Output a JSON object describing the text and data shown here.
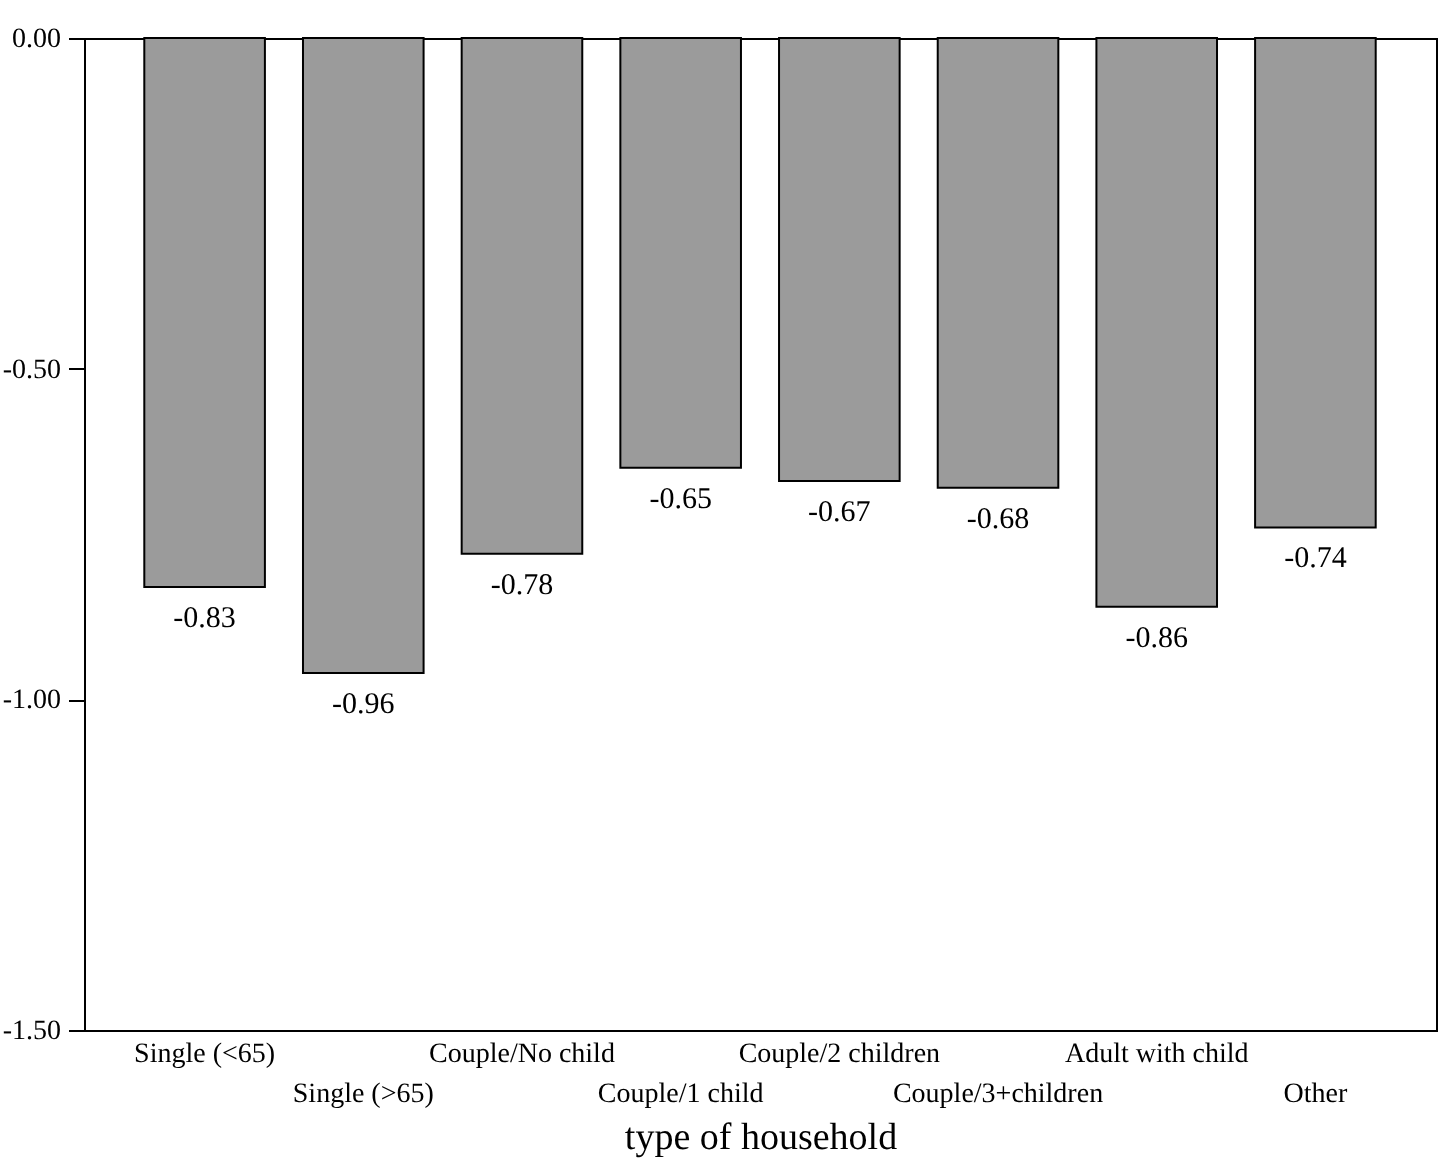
{
  "chart_data": {
    "type": "bar",
    "xlabel": "type of household",
    "categories": [
      "Single (<65)",
      "Single (>65)",
      "Couple/No child",
      "Couple/1 child",
      "Couple/2 children",
      "Couple/3+children",
      "Adult with child",
      "Other"
    ],
    "values": [
      -0.83,
      -0.96,
      -0.78,
      -0.65,
      -0.67,
      -0.68,
      -0.86,
      -0.74
    ],
    "color": "#9b9b9b",
    "data_labels": true,
    "grid": false,
    "ylim": [
      -1.5,
      0
    ],
    "yticks": [
      {
        "value": -1.5,
        "label": "-1.50"
      },
      {
        "value": -1,
        "label": "-1.00"
      },
      {
        "value": -0.5,
        "label": "-0.50"
      },
      {
        "value": 0,
        "label": "0.00"
      }
    ]
  }
}
